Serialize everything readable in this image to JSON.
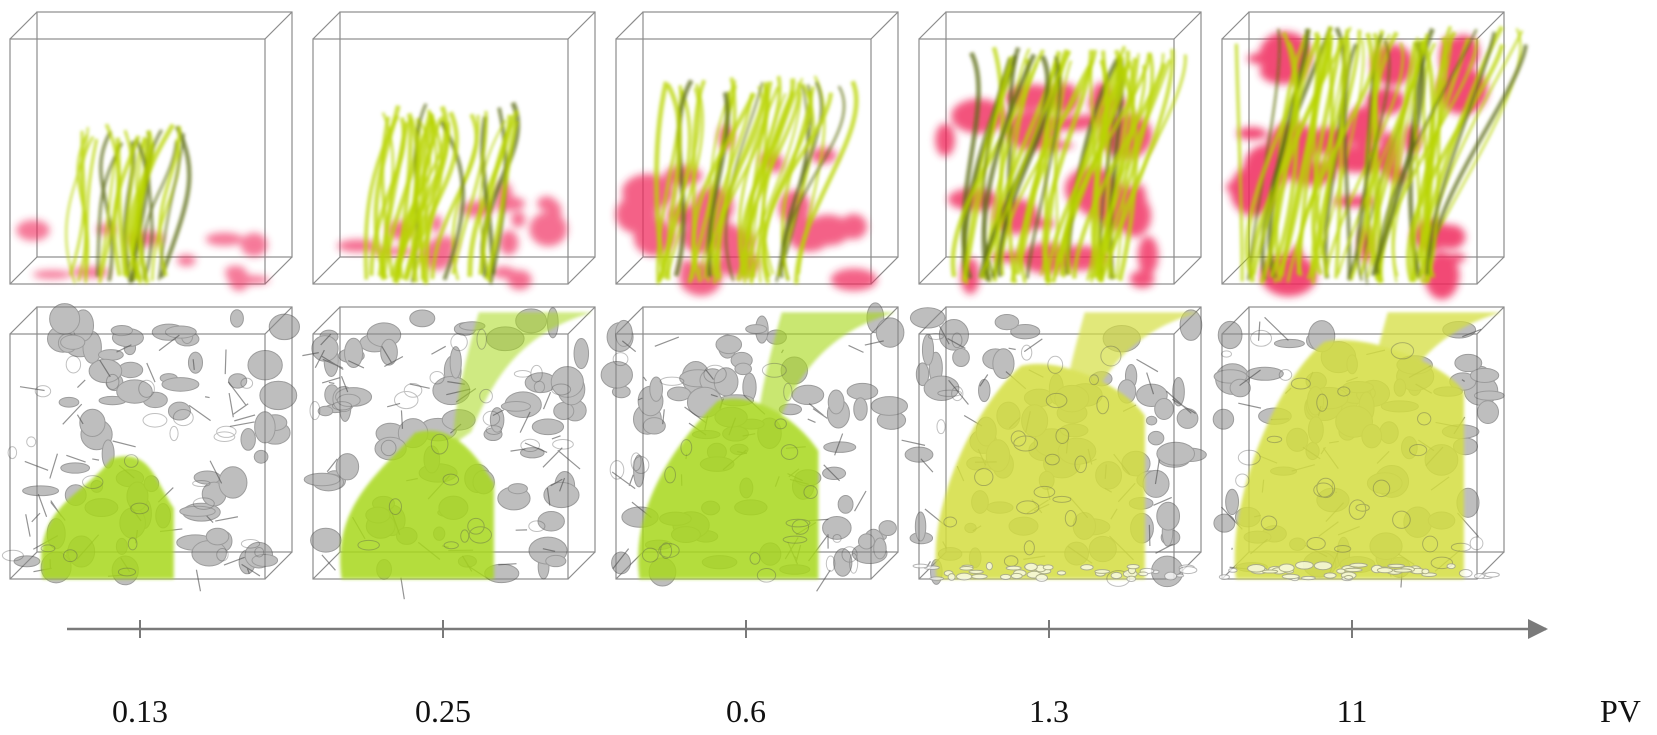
{
  "axis": {
    "unit": "PV",
    "ticks": [
      "0.13",
      "0.25",
      "0.6",
      "1.3",
      "11"
    ],
    "color": "#7a7a7a"
  },
  "rows": [
    {
      "id": "top-row",
      "style": "streamlines"
    },
    {
      "id": "bottom-row",
      "style": "isosurface"
    }
  ],
  "fill_levels": [
    0.22,
    0.38,
    0.58,
    0.8,
    0.95
  ],
  "colors": {
    "streamline": "#b8d400",
    "streamline_dark": "#5c6b10",
    "tracer": "#f0285a",
    "pore": "#8a8a8a",
    "pore_dark": "#4d4d4d",
    "fluid": "#a8d81c",
    "fluid_late": "#d4de40",
    "box_edge": "#8c8c8c"
  }
}
